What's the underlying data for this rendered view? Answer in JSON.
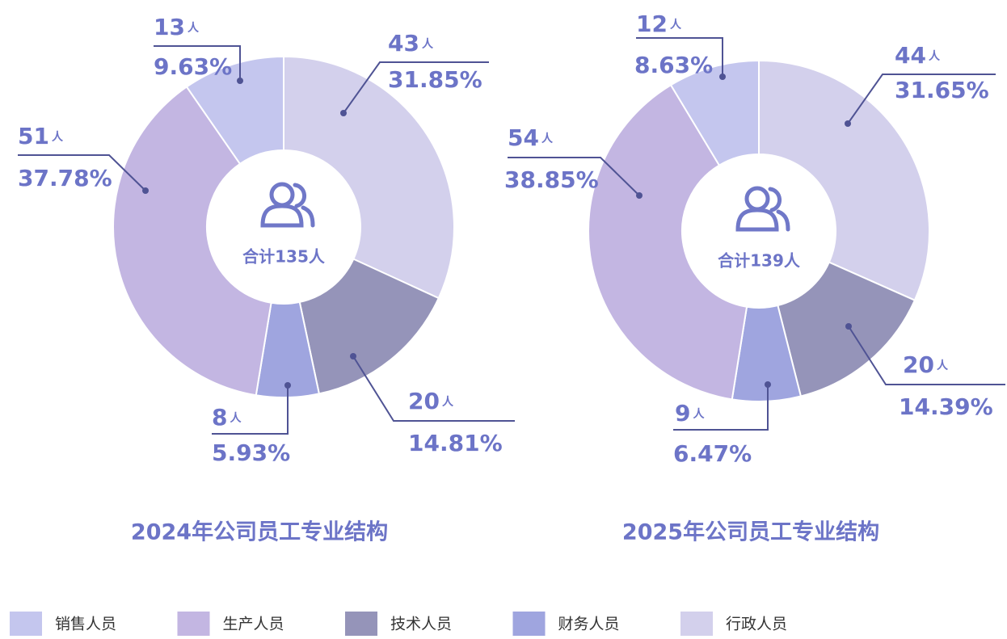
{
  "chart_data": [
    {
      "type": "pie",
      "title": "2024年公司员工专业结构",
      "center_label": "合计135人",
      "unit": "人",
      "categories": [
        "行政人员",
        "技术人员",
        "财务人员",
        "生产人员",
        "销售人员"
      ],
      "values": [
        43,
        20,
        8,
        51,
        13
      ],
      "percent_labels": [
        "31.85%",
        "14.81%",
        "5.93%",
        "37.78%",
        "9.63%"
      ],
      "colors": [
        "#d3d0ec",
        "#9594b9",
        "#9fa5df",
        "#c3b6e2",
        "#c4c6ee"
      ]
    },
    {
      "type": "pie",
      "title": "2025年公司员工专业结构",
      "center_label": "合计139人",
      "unit": "人",
      "categories": [
        "行政人员",
        "技术人员",
        "财务人员",
        "生产人员",
        "销售人员"
      ],
      "values": [
        44,
        20,
        9,
        54,
        12
      ],
      "percent_labels": [
        "31.65%",
        "14.39%",
        "6.47%",
        "38.85%",
        "8.63%"
      ],
      "colors": [
        "#d3d0ec",
        "#9594b9",
        "#9fa5df",
        "#c3b6e2",
        "#c4c6ee"
      ]
    }
  ]
}
